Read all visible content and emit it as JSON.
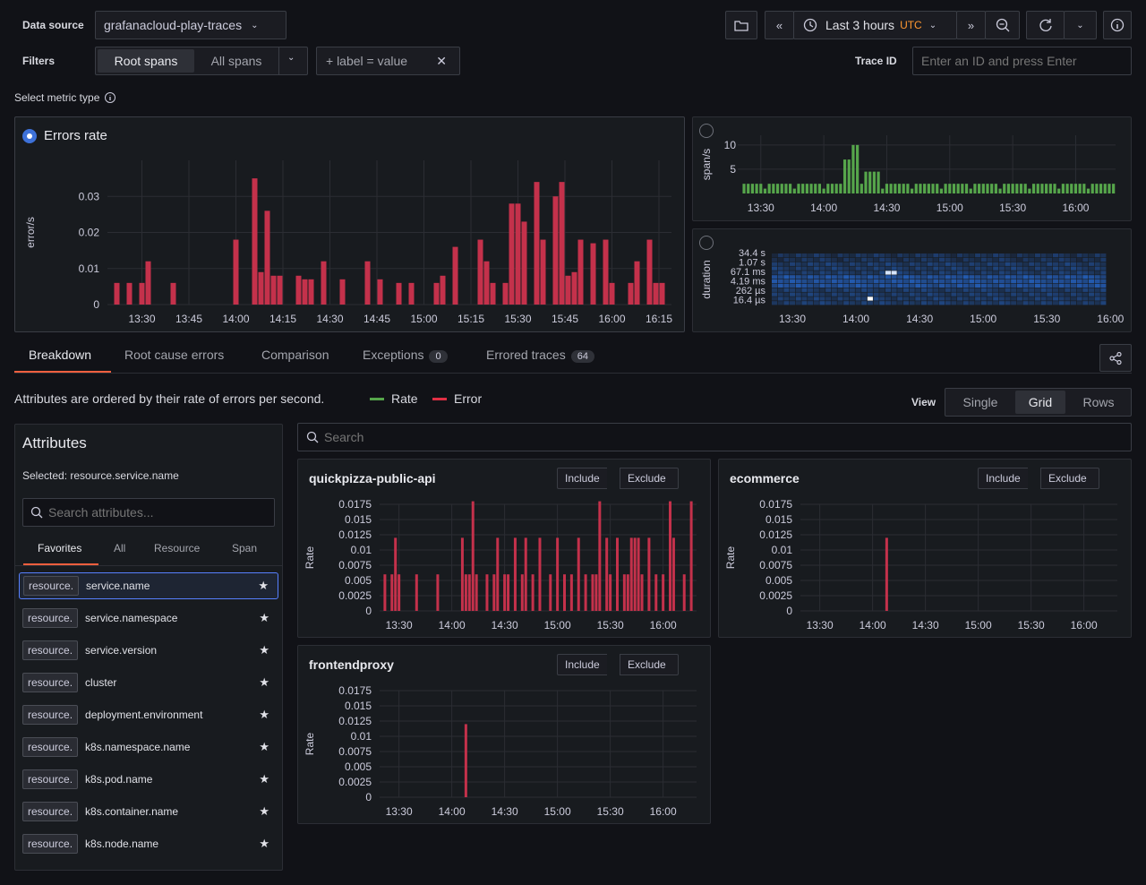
{
  "toolbar": {
    "datasource_label": "Data source",
    "datasource_value": "grafanacloud-play-traces",
    "filters_label": "Filters",
    "root_spans": "Root spans",
    "all_spans": "All spans",
    "label_filter": "+ label = value",
    "time_range": "Last 3 hours",
    "timezone": "UTC",
    "trace_id_label": "Trace ID",
    "trace_id_placeholder": "Enter an ID and press Enter"
  },
  "metric": {
    "select_label": "Select metric type",
    "errors_rate_title": "Errors rate",
    "errors_ylabel": "error/s",
    "span_ylabel": "span/s",
    "duration_ylabel": "duration"
  },
  "tabs": [
    {
      "label": "Breakdown"
    },
    {
      "label": "Root cause errors"
    },
    {
      "label": "Comparison"
    },
    {
      "label": "Exceptions",
      "count": "0"
    },
    {
      "label": "Errored traces",
      "count": "64"
    }
  ],
  "breakdown": {
    "description": "Attributes are ordered by their rate of errors per second.",
    "legend_rate": "Rate",
    "legend_error": "Error",
    "view_label": "View",
    "views": [
      "Single",
      "Grid",
      "Rows"
    ],
    "active_view": "Grid",
    "search_placeholder": "Search"
  },
  "attributes": {
    "title": "Attributes",
    "selected": "Selected: resource.service.name",
    "search_placeholder": "Search attributes...",
    "tabs": [
      "Favorites",
      "All",
      "Resource",
      "Span"
    ],
    "items": [
      {
        "prefix": "resource.",
        "name": "service.name"
      },
      {
        "prefix": "resource.",
        "name": "service.namespace"
      },
      {
        "prefix": "resource.",
        "name": "service.version"
      },
      {
        "prefix": "resource.",
        "name": "cluster"
      },
      {
        "prefix": "resource.",
        "name": "deployment.environment"
      },
      {
        "prefix": "resource.",
        "name": "k8s.namespace.name"
      },
      {
        "prefix": "resource.",
        "name": "k8s.pod.name"
      },
      {
        "prefix": "resource.",
        "name": "k8s.container.name"
      },
      {
        "prefix": "resource.",
        "name": "k8s.node.name"
      }
    ]
  },
  "panels": [
    {
      "title": "quickpizza-public-api",
      "include": "Include",
      "exclude": "Exclude",
      "ylabel": "Rate"
    },
    {
      "title": "ecommerce",
      "include": "Include",
      "exclude": "Exclude",
      "ylabel": "Rate"
    },
    {
      "title": "frontendproxy",
      "include": "Include",
      "exclude": "Exclude",
      "ylabel": "Rate"
    }
  ],
  "colors": {
    "error": "#c4314b",
    "rate": "#56a64b",
    "accent": "#3d71d9"
  },
  "chart_data": [
    {
      "id": "errors-rate",
      "type": "bar",
      "ylabel": "error/s",
      "ylim": [
        0,
        0.04
      ],
      "yticks": [
        0,
        0.01,
        0.02,
        0.03
      ],
      "xticks": [
        "13:30",
        "13:45",
        "14:00",
        "14:15",
        "14:30",
        "14:45",
        "15:00",
        "15:15",
        "15:30",
        "15:45",
        "16:00",
        "16:15"
      ],
      "x": [
        "13:22",
        "13:26",
        "13:30",
        "13:32",
        "13:40",
        "14:00",
        "14:06",
        "14:08",
        "14:10",
        "14:12",
        "14:14",
        "14:20",
        "14:22",
        "14:24",
        "14:28",
        "14:34",
        "14:42",
        "14:46",
        "14:52",
        "14:56",
        "15:04",
        "15:06",
        "15:10",
        "15:18",
        "15:20",
        "15:22",
        "15:26",
        "15:28",
        "15:30",
        "15:32",
        "15:36",
        "15:38",
        "15:42",
        "15:44",
        "15:46",
        "15:48",
        "15:50",
        "15:54",
        "15:58",
        "16:00",
        "16:06",
        "16:08",
        "16:12",
        "16:14",
        "16:16"
      ],
      "values": [
        0.006,
        0.006,
        0.006,
        0.012,
        0.006,
        0.018,
        0.035,
        0.009,
        0.026,
        0.008,
        0.008,
        0.008,
        0.007,
        0.007,
        0.012,
        0.007,
        0.012,
        0.007,
        0.006,
        0.006,
        0.006,
        0.008,
        0.016,
        0.018,
        0.012,
        0.006,
        0.006,
        0.028,
        0.028,
        0.023,
        0.034,
        0.018,
        0.03,
        0.034,
        0.008,
        0.009,
        0.018,
        0.017,
        0.018,
        0.006,
        0.006,
        0.012,
        0.018,
        0.006,
        0.006
      ]
    },
    {
      "id": "span-rate",
      "type": "bar",
      "ylabel": "span/s",
      "yticks": [
        5,
        10
      ],
      "xticks": [
        "13:30",
        "14:00",
        "14:30",
        "15:00",
        "15:30",
        "16:00"
      ]
    },
    {
      "id": "duration",
      "type": "heatmap",
      "ylabel": "duration",
      "yticks": [
        "34.4 s",
        "1.07 s",
        "67.1 ms",
        "4.19 ms",
        "262 µs",
        "16.4 µs"
      ],
      "xticks": [
        "13:30",
        "14:00",
        "14:30",
        "15:00",
        "15:30",
        "16:00"
      ]
    },
    {
      "id": "quickpizza-public-api",
      "type": "bar",
      "ylabel": "Rate",
      "yticks": [
        "0",
        "0.0025",
        "0.005",
        "0.0075",
        "0.01",
        "0.0125",
        "0.015",
        "0.0175"
      ],
      "xticks": [
        "13:30",
        "14:00",
        "14:30",
        "15:00",
        "15:30",
        "16:00"
      ]
    },
    {
      "id": "ecommerce",
      "type": "bar",
      "ylabel": "Rate",
      "yticks": [
        "0",
        "0.0025",
        "0.005",
        "0.0075",
        "0.01",
        "0.0125",
        "0.015",
        "0.0175"
      ],
      "xticks": [
        "13:30",
        "14:00",
        "14:30",
        "15:00",
        "15:30",
        "16:00"
      ],
      "x": [
        "14:08"
      ],
      "values": [
        0.012
      ]
    },
    {
      "id": "frontendproxy",
      "type": "bar",
      "ylabel": "Rate",
      "yticks": [
        "0",
        "0.0025",
        "0.005",
        "0.0075",
        "0.01",
        "0.0125",
        "0.015",
        "0.0175"
      ],
      "xticks": [
        "13:30",
        "14:00",
        "14:30",
        "15:00",
        "15:30",
        "16:00"
      ],
      "x": [
        "14:08"
      ],
      "values": [
        0.012
      ]
    }
  ]
}
